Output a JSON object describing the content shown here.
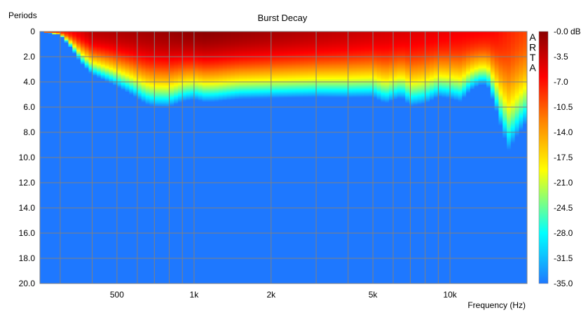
{
  "chart_data": {
    "type": "heatmap",
    "title": "Burst Decay",
    "watermark": "ARTA",
    "ylabel": "Periods",
    "xlabel": "Frequency (Hz)",
    "x_scale": "log",
    "xlim_hz": [
      250,
      20000
    ],
    "ylim_periods": [
      0,
      20
    ],
    "y_ticks": [
      "0",
      "2.0",
      "4.0",
      "6.0",
      "8.0",
      "10.0",
      "12.0",
      "14.0",
      "16.0",
      "18.0",
      "20.0"
    ],
    "x_tick_labels": [
      {
        "hz": 500,
        "label": "500"
      },
      {
        "hz": 1000,
        "label": "1k"
      },
      {
        "hz": 2000,
        "label": "2k"
      },
      {
        "hz": 5000,
        "label": "5k"
      },
      {
        "hz": 10000,
        "label": "10k"
      }
    ],
    "x_grid_hz": [
      300,
      400,
      500,
      600,
      700,
      800,
      900,
      1000,
      2000,
      3000,
      4000,
      5000,
      6000,
      7000,
      8000,
      9000,
      10000,
      20000
    ],
    "grid": true,
    "colorbar": {
      "unit": "dB",
      "range": [
        -35,
        0
      ],
      "labels": [
        "-0.0 dB",
        "-3.5",
        "-7.0",
        "-10.5",
        "-14.0",
        "-17.5",
        "-21.0",
        "-24.5",
        "-28.0",
        "-31.5",
        "-35.0"
      ]
    },
    "decay_profile": {
      "description_units": "frequency in Hz, decay extent in periods (level falls to -35 dB floor)",
      "freq_hz": [
        250,
        300,
        330,
        360,
        400,
        450,
        500,
        550,
        600,
        650,
        700,
        800,
        900,
        1000,
        1100,
        1200,
        1500,
        2000,
        3000,
        4000,
        5000,
        5600,
        6000,
        6500,
        7000,
        8000,
        9000,
        10000,
        11000,
        12000,
        13000,
        14000,
        15000,
        16000,
        17000,
        18000,
        20000
      ],
      "extent_periods": [
        0.0,
        0.3,
        1.5,
        2.8,
        3.8,
        4.3,
        4.8,
        5.3,
        5.8,
        6.3,
        6.5,
        6.5,
        6.0,
        5.8,
        6.0,
        6.0,
        5.8,
        5.8,
        5.8,
        5.9,
        5.9,
        6.5,
        6.2,
        6.0,
        6.8,
        6.6,
        6.0,
        6.2,
        6.5,
        5.5,
        5.0,
        5.0,
        7.0,
        9.5,
        11.5,
        10.5,
        9.0
      ],
      "peak_hz": 1100
    }
  }
}
